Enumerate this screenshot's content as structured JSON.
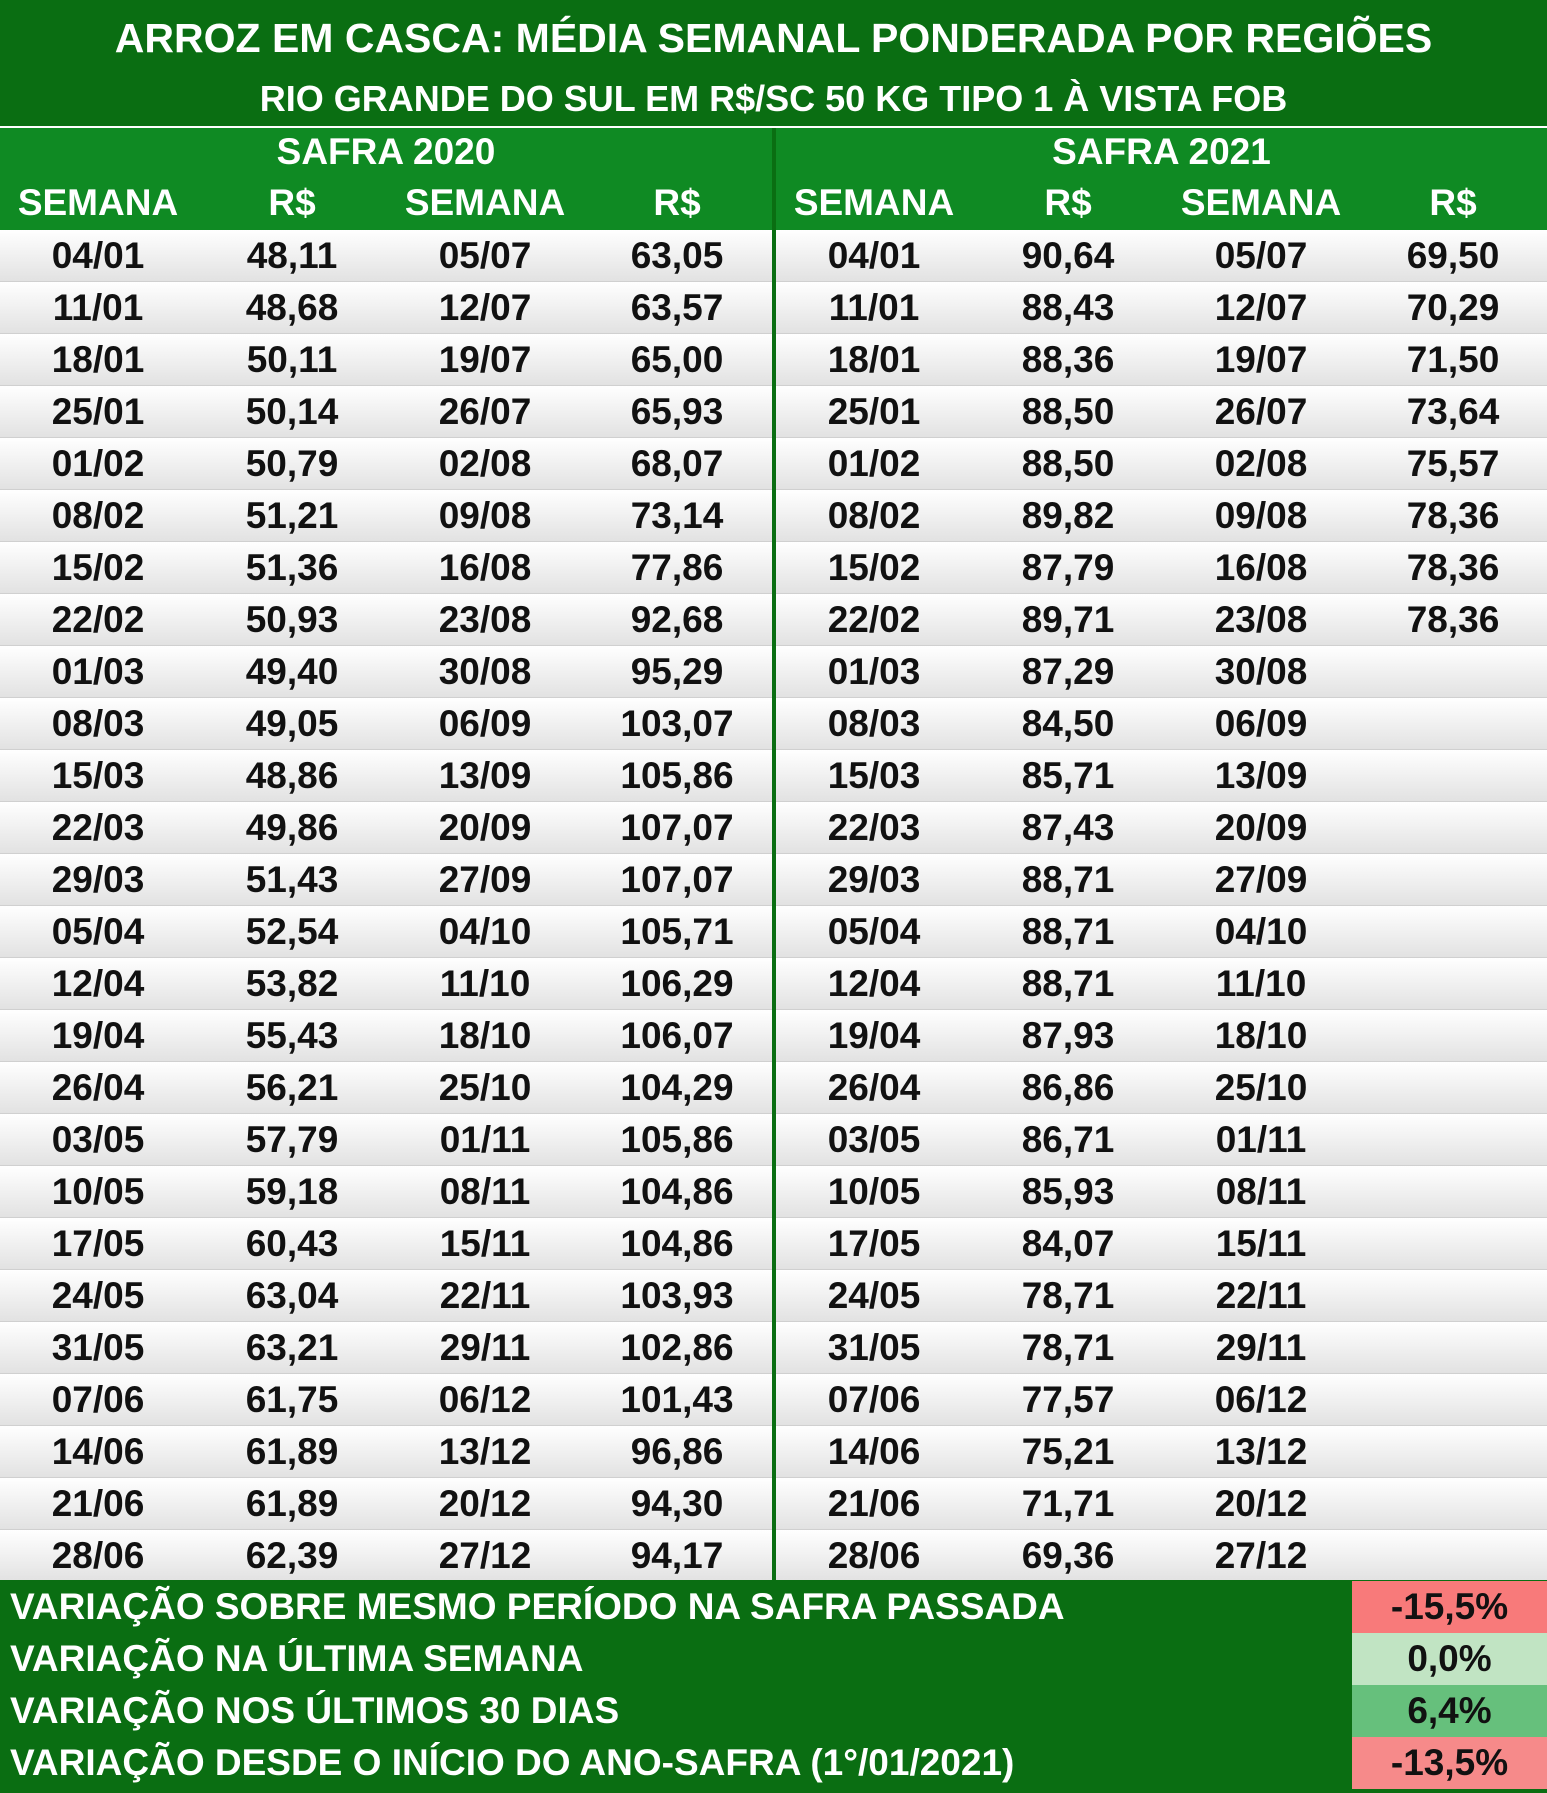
{
  "header": {
    "title": "ARROZ EM CASCA: MÉDIA SEMANAL PONDERADA POR REGIÕES",
    "subtitle": "RIO GRANDE DO SUL EM R$/SC 50 KG TIPO 1 À VISTA FOB"
  },
  "chart_data": {
    "type": "table",
    "safras": [
      {
        "label": "SAFRA 2020",
        "columns": [
          "SEMANA",
          "R$",
          "SEMANA",
          "R$"
        ],
        "rows": [
          [
            "04/01",
            "48,11",
            "05/07",
            "63,05"
          ],
          [
            "11/01",
            "48,68",
            "12/07",
            "63,57"
          ],
          [
            "18/01",
            "50,11",
            "19/07",
            "65,00"
          ],
          [
            "25/01",
            "50,14",
            "26/07",
            "65,93"
          ],
          [
            "01/02",
            "50,79",
            "02/08",
            "68,07"
          ],
          [
            "08/02",
            "51,21",
            "09/08",
            "73,14"
          ],
          [
            "15/02",
            "51,36",
            "16/08",
            "77,86"
          ],
          [
            "22/02",
            "50,93",
            "23/08",
            "92,68"
          ],
          [
            "01/03",
            "49,40",
            "30/08",
            "95,29"
          ],
          [
            "08/03",
            "49,05",
            "06/09",
            "103,07"
          ],
          [
            "15/03",
            "48,86",
            "13/09",
            "105,86"
          ],
          [
            "22/03",
            "49,86",
            "20/09",
            "107,07"
          ],
          [
            "29/03",
            "51,43",
            "27/09",
            "107,07"
          ],
          [
            "05/04",
            "52,54",
            "04/10",
            "105,71"
          ],
          [
            "12/04",
            "53,82",
            "11/10",
            "106,29"
          ],
          [
            "19/04",
            "55,43",
            "18/10",
            "106,07"
          ],
          [
            "26/04",
            "56,21",
            "25/10",
            "104,29"
          ],
          [
            "03/05",
            "57,79",
            "01/11",
            "105,86"
          ],
          [
            "10/05",
            "59,18",
            "08/11",
            "104,86"
          ],
          [
            "17/05",
            "60,43",
            "15/11",
            "104,86"
          ],
          [
            "24/05",
            "63,04",
            "22/11",
            "103,93"
          ],
          [
            "31/05",
            "63,21",
            "29/11",
            "102,86"
          ],
          [
            "07/06",
            "61,75",
            "06/12",
            "101,43"
          ],
          [
            "14/06",
            "61,89",
            "13/12",
            "96,86"
          ],
          [
            "21/06",
            "61,89",
            "20/12",
            "94,30"
          ],
          [
            "28/06",
            "62,39",
            "27/12",
            "94,17"
          ]
        ]
      },
      {
        "label": "SAFRA 2021",
        "columns": [
          "SEMANA",
          "R$",
          "SEMANA",
          "R$"
        ],
        "rows": [
          [
            "04/01",
            "90,64",
            "05/07",
            "69,50"
          ],
          [
            "11/01",
            "88,43",
            "12/07",
            "70,29"
          ],
          [
            "18/01",
            "88,36",
            "19/07",
            "71,50"
          ],
          [
            "25/01",
            "88,50",
            "26/07",
            "73,64"
          ],
          [
            "01/02",
            "88,50",
            "02/08",
            "75,57"
          ],
          [
            "08/02",
            "89,82",
            "09/08",
            "78,36"
          ],
          [
            "15/02",
            "87,79",
            "16/08",
            "78,36"
          ],
          [
            "22/02",
            "89,71",
            "23/08",
            "78,36"
          ],
          [
            "01/03",
            "87,29",
            "30/08",
            ""
          ],
          [
            "08/03",
            "84,50",
            "06/09",
            ""
          ],
          [
            "15/03",
            "85,71",
            "13/09",
            ""
          ],
          [
            "22/03",
            "87,43",
            "20/09",
            ""
          ],
          [
            "29/03",
            "88,71",
            "27/09",
            ""
          ],
          [
            "05/04",
            "88,71",
            "04/10",
            ""
          ],
          [
            "12/04",
            "88,71",
            "11/10",
            ""
          ],
          [
            "19/04",
            "87,93",
            "18/10",
            ""
          ],
          [
            "26/04",
            "86,86",
            "25/10",
            ""
          ],
          [
            "03/05",
            "86,71",
            "01/11",
            ""
          ],
          [
            "10/05",
            "85,93",
            "08/11",
            ""
          ],
          [
            "17/05",
            "84,07",
            "15/11",
            ""
          ],
          [
            "24/05",
            "78,71",
            "22/11",
            ""
          ],
          [
            "31/05",
            "78,71",
            "29/11",
            ""
          ],
          [
            "07/06",
            "77,57",
            "06/12",
            ""
          ],
          [
            "14/06",
            "75,21",
            "13/12",
            ""
          ],
          [
            "21/06",
            "71,71",
            "20/12",
            ""
          ],
          [
            "28/06",
            "69,36",
            "27/12",
            ""
          ]
        ]
      }
    ]
  },
  "summary": [
    {
      "label": "VARIAÇÃO SOBRE MESMO PERÍODO NA SAFRA PASSADA",
      "value": "-15,5%",
      "color": "#f87a7a"
    },
    {
      "label": "VARIAÇÃO NA ÚLTIMA SEMANA",
      "value": "0,0%",
      "color": "#c1e4c3"
    },
    {
      "label": "VARIAÇÃO NOS ÚLTIMOS 30 DIAS",
      "value": "6,4%",
      "color": "#66c07c"
    },
    {
      "label": "VARIAÇÃO DESDE O INÍCIO DO ANO-SAFRA (1°/01/2021)",
      "value": "-13,5%",
      "color": "#f68a8a"
    }
  ]
}
